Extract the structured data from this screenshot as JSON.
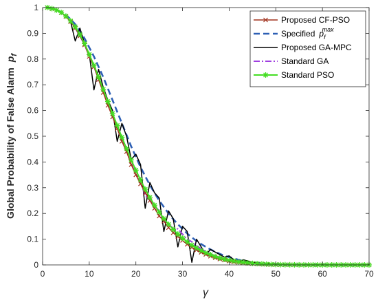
{
  "chart_data": {
    "type": "line",
    "title": "",
    "xlabel": "γ",
    "ylabel": "Global Probability of False Alarm",
    "ylabel_symbol": "p",
    "ylabel_symbol_sub": "f",
    "xlim": [
      0,
      70
    ],
    "ylim": [
      0,
      1
    ],
    "x_ticks": [
      "0",
      "10",
      "20",
      "30",
      "40",
      "50",
      "60",
      "70"
    ],
    "y_ticks": [
      "0",
      "0.1",
      "0.2",
      "0.3",
      "0.4",
      "0.5",
      "0.6",
      "0.7",
      "0.8",
      "0.9",
      "1"
    ],
    "grid": false,
    "legend_position": "top-right",
    "x": [
      1,
      2,
      3,
      4,
      5,
      6,
      7,
      8,
      9,
      10,
      11,
      12,
      13,
      14,
      15,
      16,
      17,
      18,
      19,
      20,
      21,
      22,
      23,
      24,
      25,
      26,
      27,
      28,
      29,
      30,
      31,
      32,
      33,
      34,
      35,
      36,
      37,
      38,
      39,
      40,
      41,
      42,
      43,
      44,
      45,
      46,
      47,
      48,
      49,
      50,
      51,
      52,
      53,
      54,
      55,
      56,
      57,
      58,
      59,
      60,
      61,
      62,
      63,
      64,
      65,
      66,
      67,
      68,
      69,
      70
    ],
    "series": [
      {
        "name": "Proposed CF-PSO",
        "color": "#a0301c",
        "style": "solid-x-markers",
        "values": [
          1.0,
          0.995,
          0.99,
          0.98,
          0.965,
          0.945,
          0.92,
          0.89,
          0.855,
          0.81,
          0.77,
          0.72,
          0.67,
          0.62,
          0.575,
          0.53,
          0.48,
          0.44,
          0.39,
          0.35,
          0.315,
          0.28,
          0.25,
          0.22,
          0.19,
          0.17,
          0.145,
          0.125,
          0.11,
          0.095,
          0.08,
          0.068,
          0.058,
          0.049,
          0.041,
          0.034,
          0.028,
          0.023,
          0.019,
          0.015,
          0.012,
          0.01,
          0.008,
          0.006,
          0.005,
          0.004,
          0.003,
          0.002,
          0.0015,
          0.001,
          0.0008,
          0.0006,
          0.0004,
          0.0003,
          0.0002,
          0.0001,
          0.0001,
          0.0,
          0.0,
          0.0,
          0.0,
          0.0,
          0.0,
          0.0,
          0.0,
          0.0,
          0.0,
          0.0,
          0.0,
          0.0
        ]
      },
      {
        "name": "Specified",
        "legend_symbol": "p",
        "legend_symbol_sub": "f",
        "legend_symbol_sup": "max",
        "color": "#2d5fb4",
        "style": "dashed",
        "values": [
          1.0,
          0.996,
          0.99,
          0.982,
          0.97,
          0.955,
          0.935,
          0.91,
          0.88,
          0.845,
          0.81,
          0.77,
          0.73,
          0.685,
          0.64,
          0.595,
          0.55,
          0.505,
          0.46,
          0.42,
          0.38,
          0.345,
          0.31,
          0.28,
          0.25,
          0.225,
          0.2,
          0.178,
          0.158,
          0.14,
          0.122,
          0.107,
          0.093,
          0.081,
          0.07,
          0.06,
          0.051,
          0.043,
          0.036,
          0.03,
          0.025,
          0.02,
          0.016,
          0.013,
          0.01,
          0.008,
          0.006,
          0.005,
          0.004,
          0.003,
          0.002,
          0.0015,
          0.001,
          0.0008,
          0.0006,
          0.0004,
          0.0003,
          0.0002,
          0.0001,
          0.0001,
          0.0,
          0.0,
          0.0,
          0.0,
          0.0,
          0.0,
          0.0,
          0.0,
          0.0,
          0.0
        ]
      },
      {
        "name": "Proposed GA-MPC",
        "color": "#000000",
        "style": "solid",
        "values": [
          1.0,
          0.995,
          0.99,
          0.98,
          0.965,
          0.945,
          0.87,
          0.92,
          0.86,
          0.82,
          0.68,
          0.76,
          0.69,
          0.64,
          0.6,
          0.48,
          0.55,
          0.5,
          0.41,
          0.43,
          0.39,
          0.22,
          0.32,
          0.28,
          0.26,
          0.13,
          0.21,
          0.18,
          0.07,
          0.15,
          0.13,
          0.01,
          0.1,
          0.07,
          0.04,
          0.06,
          0.05,
          0.04,
          0.03,
          0.035,
          0.02,
          0.01,
          0.02,
          0.015,
          0.01,
          0.008,
          0.0,
          0.006,
          0.004,
          0.003,
          0.002,
          0.0015,
          0.001,
          0.0008,
          0.0006,
          0.0004,
          0.0003,
          0.0002,
          0.0001,
          0.0001,
          0.0,
          0.0,
          0.0,
          0.0,
          0.0,
          0.0,
          0.0,
          0.0,
          0.0,
          0.0
        ]
      },
      {
        "name": "Standard GA",
        "color": "#a040e0",
        "style": "dashdot",
        "values": [
          1.0,
          0.995,
          0.99,
          0.98,
          0.966,
          0.946,
          0.92,
          0.89,
          0.855,
          0.812,
          0.77,
          0.725,
          0.675,
          0.625,
          0.58,
          0.535,
          0.485,
          0.445,
          0.395,
          0.36,
          0.32,
          0.27,
          0.25,
          0.23,
          0.21,
          0.17,
          0.16,
          0.14,
          0.14,
          0.12,
          0.1,
          0.09,
          0.075,
          0.063,
          0.052,
          0.043,
          0.036,
          0.03,
          0.024,
          0.019,
          0.015,
          0.012,
          0.01,
          0.008,
          0.006,
          0.005,
          0.004,
          0.003,
          0.002,
          0.0015,
          0.001,
          0.0008,
          0.0006,
          0.0004,
          0.0003,
          0.0002,
          0.0001,
          0.0001,
          0.0,
          0.0,
          0.0,
          0.0,
          0.0,
          0.0,
          0.0,
          0.0,
          0.0,
          0.0,
          0.0,
          0.0
        ]
      },
      {
        "name": "Standard PSO",
        "color": "#44dd22",
        "style": "solid-star-markers",
        "values": [
          1.0,
          0.996,
          0.99,
          0.981,
          0.967,
          0.948,
          0.925,
          0.895,
          0.86,
          0.818,
          0.776,
          0.73,
          0.682,
          0.635,
          0.588,
          0.542,
          0.496,
          0.452,
          0.408,
          0.368,
          0.33,
          0.294,
          0.262,
          0.232,
          0.205,
          0.18,
          0.158,
          0.138,
          0.12,
          0.104,
          0.09,
          0.077,
          0.066,
          0.056,
          0.047,
          0.04,
          0.033,
          0.027,
          0.022,
          0.018,
          0.015,
          0.012,
          0.01,
          0.008,
          0.006,
          0.005,
          0.004,
          0.003,
          0.002,
          0.0015,
          0.001,
          0.0008,
          0.0006,
          0.0004,
          0.0003,
          0.0002,
          0.0001,
          0.0001,
          0.0,
          0.0,
          0.0,
          0.0,
          0.0,
          0.0,
          0.0,
          0.0,
          0.0,
          0.0,
          0.0,
          0.0
        ]
      }
    ]
  }
}
